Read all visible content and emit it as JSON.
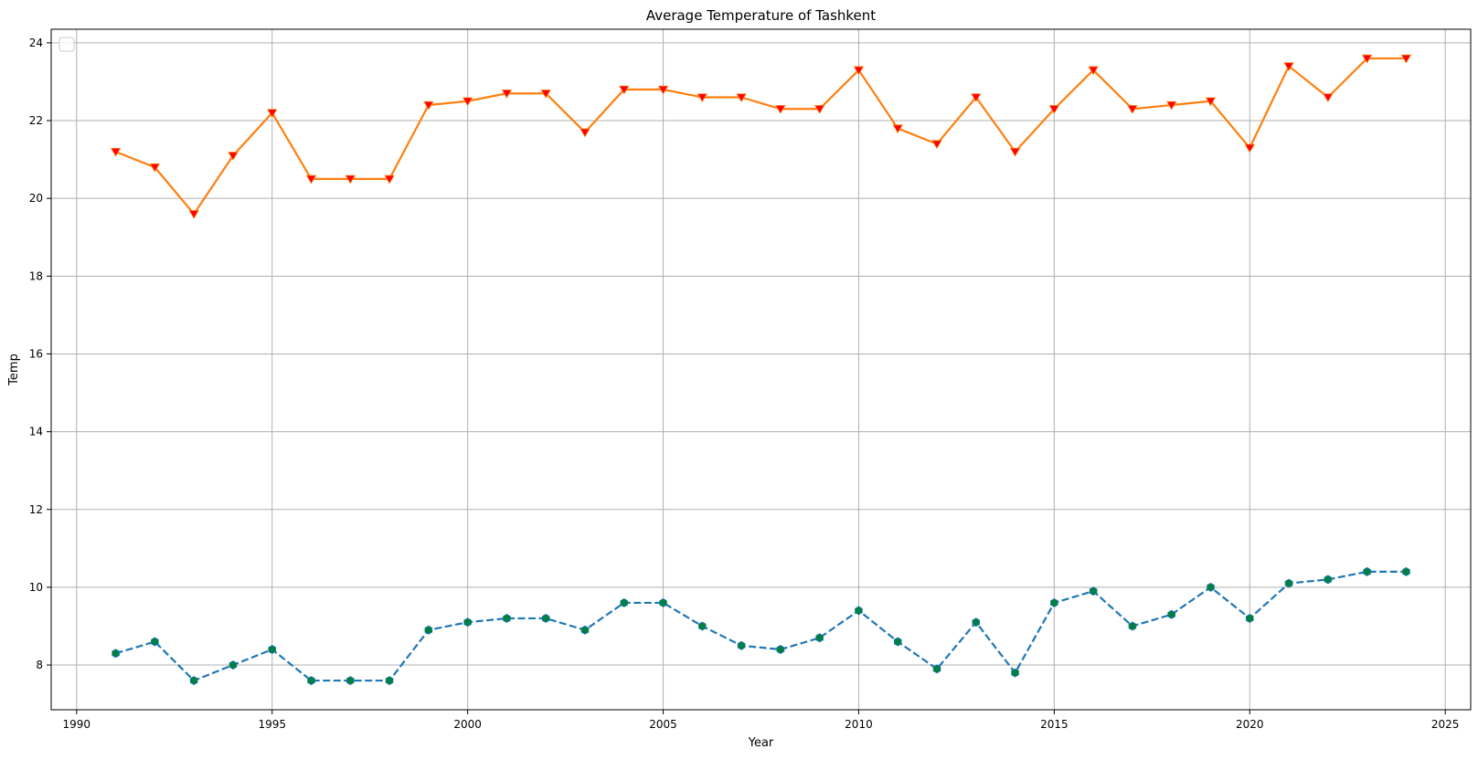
{
  "chart_data": {
    "type": "line",
    "title": "Average Temperature of Tashkent",
    "xlabel": "Year",
    "ylabel": "Temp",
    "xlim": [
      1989.35,
      2025.65
    ],
    "ylim": [
      6.85,
      24.35
    ],
    "xticks": [
      1990,
      1995,
      2000,
      2005,
      2010,
      2015,
      2020,
      2025
    ],
    "yticks": [
      8,
      10,
      12,
      14,
      16,
      18,
      20,
      22,
      24
    ],
    "grid": true,
    "legend": {
      "placement": "top-left",
      "entries": []
    },
    "x": [
      1991,
      1992,
      1993,
      1994,
      1995,
      1996,
      1997,
      1998,
      1999,
      2000,
      2001,
      2002,
      2003,
      2004,
      2005,
      2006,
      2007,
      2008,
      2009,
      2010,
      2011,
      2012,
      2013,
      2014,
      2015,
      2016,
      2017,
      2018,
      2019,
      2020,
      2021,
      2022,
      2023,
      2024
    ],
    "series": [
      {
        "line_color": "#ff7f0e",
        "line_style": "solid",
        "marker": "triangle-down",
        "marker_color": "#ff0000",
        "values": [
          21.2,
          20.8,
          19.6,
          21.1,
          22.2,
          20.5,
          20.5,
          20.5,
          22.4,
          22.5,
          22.7,
          22.7,
          21.7,
          22.8,
          22.8,
          22.6,
          22.6,
          22.3,
          22.3,
          23.3,
          21.8,
          21.4,
          22.6,
          21.2,
          22.3,
          23.3,
          22.3,
          22.4,
          22.5,
          21.3,
          23.4,
          22.6,
          23.6,
          23.6
        ]
      },
      {
        "line_color": "#1f77b4",
        "line_style": "dashed",
        "marker": "hexagon",
        "marker_color": "#008040",
        "values": [
          8.3,
          8.6,
          7.6,
          8.0,
          8.4,
          7.6,
          7.6,
          7.6,
          8.9,
          9.1,
          9.2,
          9.2,
          8.9,
          9.6,
          9.6,
          9.0,
          8.5,
          8.4,
          8.7,
          9.4,
          8.6,
          7.9,
          9.1,
          7.8,
          9.6,
          9.9,
          9.0,
          9.3,
          10.0,
          9.2,
          10.1,
          10.2,
          10.4,
          10.4
        ]
      }
    ]
  }
}
